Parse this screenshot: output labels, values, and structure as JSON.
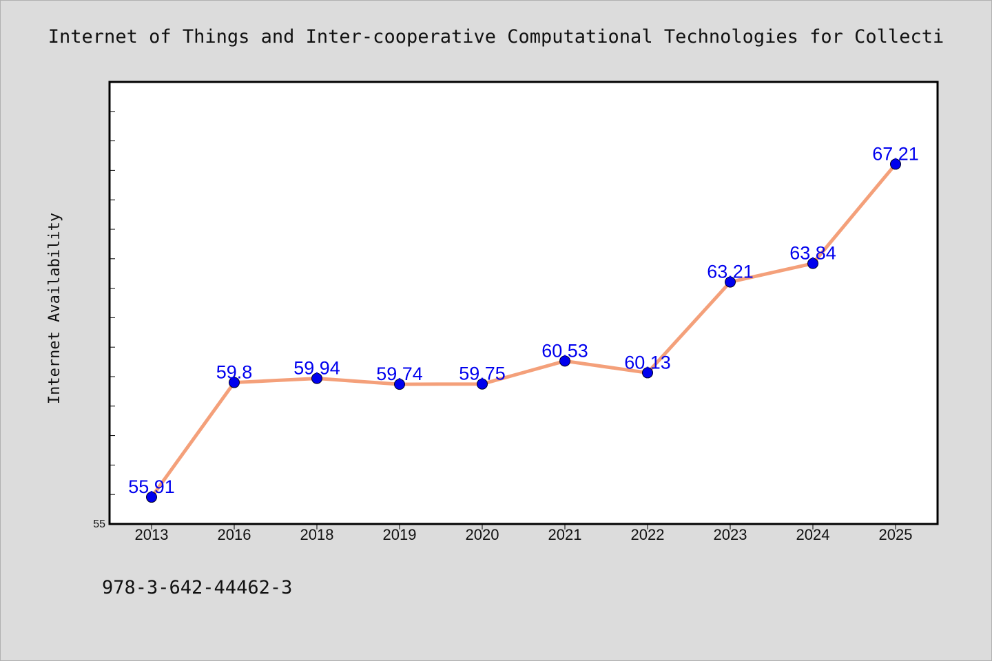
{
  "chart_data": {
    "type": "line",
    "title": "Internet of Things and Inter-cooperative Computational Technologies for Collecti",
    "xlabel": "",
    "ylabel": "Internet Availability",
    "categories": [
      "2013",
      "2016",
      "2018",
      "2019",
      "2020",
      "2021",
      "2022",
      "2023",
      "2024",
      "2025"
    ],
    "series": [
      {
        "values": [
          55.91,
          59.8,
          59.94,
          59.74,
          59.75,
          60.53,
          60.13,
          63.21,
          63.84,
          67.21
        ],
        "data_labels": [
          "55.91",
          "59.8",
          "59.94",
          "59.74",
          "59.75",
          "60.53",
          "60.13",
          "63.21",
          "63.84",
          "67.21"
        ]
      }
    ],
    "ylim": [
      55,
      70
    ],
    "yticks_labeled": [
      "55"
    ],
    "grid": false,
    "legend": "none",
    "colors": {
      "line": "#f4a07a",
      "marker": "#0000ee",
      "data_label": "#0000ee",
      "plot_background": "#ffffff",
      "page_background": "#dcdcdc"
    }
  },
  "footer": {
    "isbn": "978-3-642-44462-3"
  }
}
